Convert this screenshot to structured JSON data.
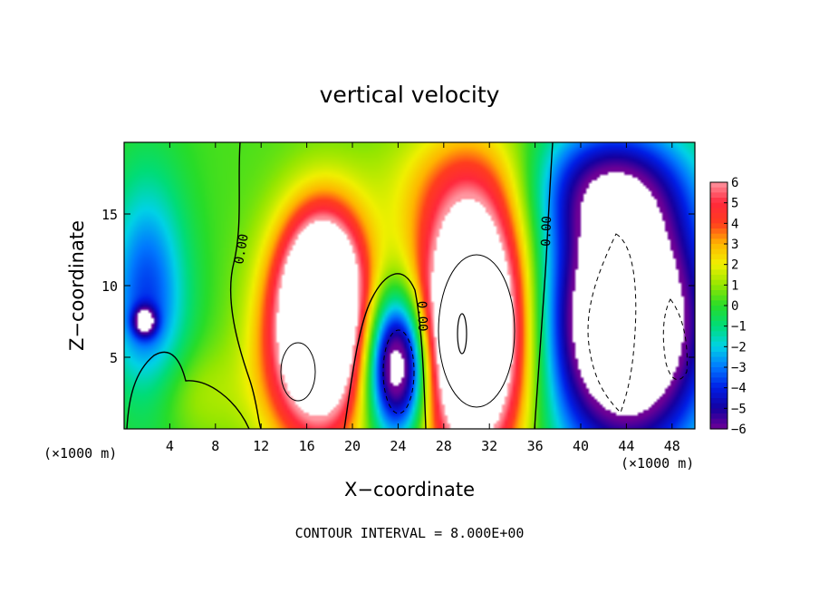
{
  "chart_data": {
    "type": "heatmap",
    "title": "vertical velocity",
    "xlabel": "X−coordinate",
    "ylabel": "Z−coordinate",
    "x_unit_left": "(×1000 m)",
    "x_unit_right": "(×1000 m)",
    "footer": "CONTOUR INTERVAL = 8.000E+00",
    "xlim": [
      0,
      50
    ],
    "ylim": [
      0,
      20
    ],
    "x_ticks": [
      4,
      8,
      12,
      16,
      20,
      24,
      28,
      32,
      36,
      40,
      44,
      48
    ],
    "y_ticks": [
      5,
      10,
      15
    ],
    "colorbar": {
      "ticks": [
        6,
        5,
        4,
        3,
        2,
        1,
        0,
        -1,
        -2,
        -3,
        -4,
        -5,
        -6
      ],
      "tick_labels": [
        "6",
        "5",
        "4",
        "3",
        "2",
        "1",
        "0",
        "−1",
        "−2",
        "−3",
        "−4",
        "−5",
        "−6"
      ],
      "range": [
        -6,
        6
      ]
    },
    "contour_label": "0.00",
    "features": [
      {
        "x": 17,
        "z": 6,
        "sx": 3.2,
        "sz": 5,
        "amp": 10
      },
      {
        "x": 17.5,
        "z": 11,
        "sx": 2.4,
        "sz": 3.5,
        "amp": 6
      },
      {
        "x": 30.5,
        "z": 7,
        "sx": 3.4,
        "sz": 6.5,
        "amp": 13
      },
      {
        "x": 24,
        "z": 4.5,
        "sx": 2,
        "sz": 3.5,
        "amp": -10
      },
      {
        "x": 44,
        "z": 7.5,
        "sx": 5,
        "sz": 6.5,
        "amp": -11
      },
      {
        "x": 2,
        "z": 9,
        "sx": 2.5,
        "sz": 6,
        "amp": -4
      },
      {
        "x": 1.8,
        "z": 7.5,
        "sx": 0.7,
        "sz": 0.7,
        "amp": -5
      },
      {
        "x": 42,
        "z": 17,
        "sx": 5,
        "sz": 3,
        "amp": -4
      },
      {
        "x": 5,
        "z": 2.5,
        "sx": 4,
        "sz": 2.5,
        "amp": 1.2
      },
      {
        "x": 30,
        "z": 17,
        "sx": 6,
        "sz": 3,
        "amp": 1.5
      }
    ]
  }
}
